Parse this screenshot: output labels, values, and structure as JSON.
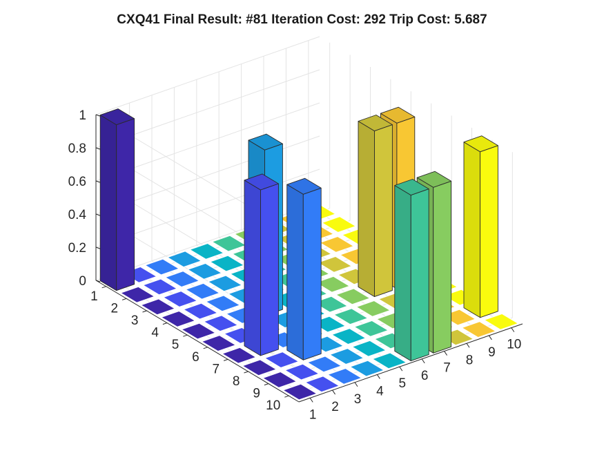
{
  "chart_data": {
    "type": "bar3",
    "title": "CXQ41 Final Result: #81 Iteration Cost: 292 Trip Cost: 5.687",
    "x_ticks": [
      "1",
      "2",
      "3",
      "4",
      "5",
      "6",
      "7",
      "8",
      "9",
      "10"
    ],
    "y_ticks": [
      "1",
      "2",
      "3",
      "4",
      "5",
      "6",
      "7",
      "8",
      "9",
      "10"
    ],
    "z_ticks": [
      "0",
      "0.2",
      "0.4",
      "0.6",
      "0.8",
      "1"
    ],
    "zlim": [
      0,
      1
    ],
    "grid": true,
    "colormap": "parula",
    "matrix": [
      [
        1,
        0,
        0,
        0,
        0,
        0,
        0,
        0,
        0,
        0
      ],
      [
        0,
        0,
        0,
        0,
        0,
        0,
        0,
        0,
        0,
        0
      ],
      [
        0,
        0,
        0,
        0,
        0,
        0,
        0,
        0,
        0,
        0
      ],
      [
        0,
        0,
        0,
        0,
        0,
        0,
        0,
        0,
        0,
        0
      ],
      [
        0,
        0,
        0,
        1,
        0,
        0,
        0,
        0,
        0,
        0
      ],
      [
        0,
        0,
        0,
        0,
        0,
        0,
        0,
        1,
        1,
        0
      ],
      [
        0,
        1,
        0,
        0,
        0,
        0,
        0,
        0,
        0,
        0
      ],
      [
        0,
        0,
        1,
        0,
        0,
        0,
        0,
        0,
        0,
        0
      ],
      [
        0,
        0,
        0,
        0,
        0,
        0,
        0,
        0,
        0,
        1
      ],
      [
        0,
        0,
        0,
        0,
        0,
        1,
        1,
        0,
        0,
        0
      ]
    ]
  }
}
